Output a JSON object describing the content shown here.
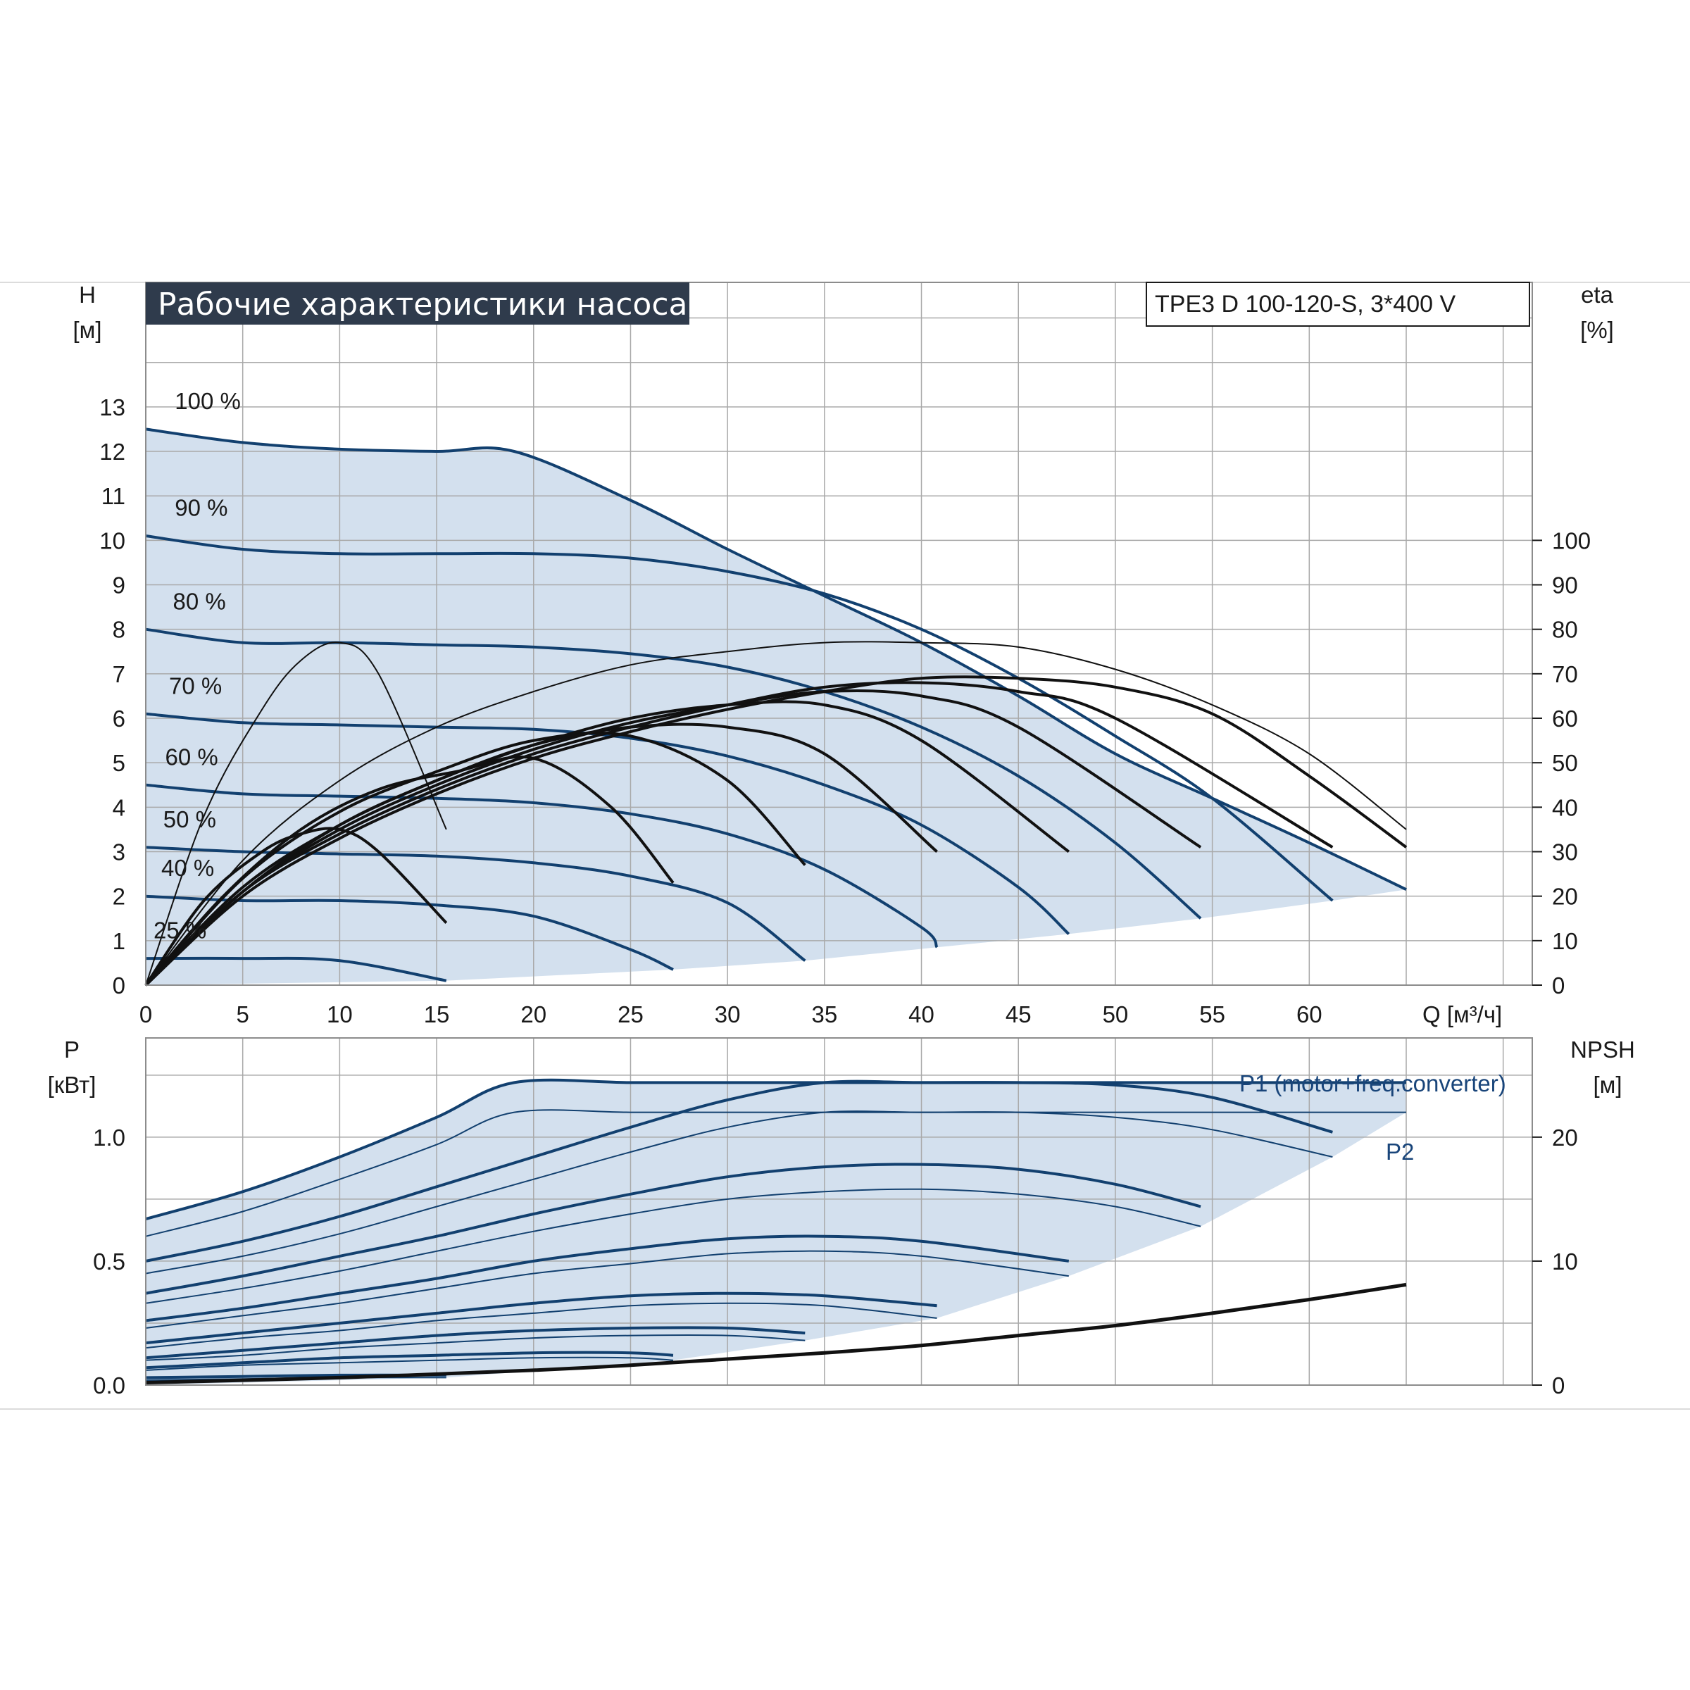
{
  "colors": {
    "curve_blue": "#12406f",
    "fill_blue": "#d3e0ee",
    "grid": "#a9a9a9",
    "eff_black": "#111111",
    "title_bg": "#2f3b4c"
  },
  "chart_data": [
    {
      "type": "line",
      "title": "Рабочие характеристики насоса",
      "model": "TPE3 D 100-120-S, 3*400 V",
      "ylabel": "H",
      "yunit": "[м]",
      "y2label": "eta",
      "y2unit": "[%]",
      "xlabel": "Q [м³/ч]",
      "xlim": [
        0,
        71.5
      ],
      "ylim": [
        0,
        15.8
      ],
      "y2lim": [
        0,
        100
      ],
      "x_ticks": [
        "0",
        "5",
        "10",
        "15",
        "20",
        "25",
        "30",
        "35",
        "40",
        "45",
        "50",
        "55",
        "60"
      ],
      "y_ticks": [
        "0",
        "1",
        "2",
        "3",
        "4",
        "5",
        "6",
        "7",
        "8",
        "9",
        "10",
        "11",
        "12",
        "13"
      ],
      "y2_ticks": [
        "0",
        "10",
        "20",
        "30",
        "40",
        "50",
        "60",
        "70",
        "80",
        "90",
        "100"
      ],
      "grid": true,
      "speed_labels": [
        "100 %",
        "90 %",
        "80 %",
        "70 %",
        "60 %",
        "50 %",
        "40 %",
        "25 %"
      ],
      "head_curves": [
        {
          "name": "100 %",
          "x": [
            0,
            5,
            10,
            15,
            19,
            25,
            30,
            35,
            40,
            45,
            50,
            55,
            60,
            65
          ],
          "y": [
            12.5,
            12.2,
            12.05,
            12.0,
            12.0,
            10.9,
            9.8,
            8.75,
            7.7,
            6.5,
            5.2,
            4.2,
            3.2,
            2.15
          ]
        },
        {
          "name": "90 %",
          "x": [
            0,
            5,
            10,
            15,
            20,
            25,
            30,
            35,
            40,
            45,
            50,
            55,
            61.2
          ],
          "y": [
            10.1,
            9.8,
            9.7,
            9.7,
            9.7,
            9.6,
            9.3,
            8.8,
            8.0,
            6.9,
            5.6,
            4.2,
            1.9
          ]
        },
        {
          "name": "80 %",
          "x": [
            0,
            5,
            10,
            15,
            20,
            25,
            30,
            35,
            40,
            45,
            50,
            54.4
          ],
          "y": [
            8.0,
            7.7,
            7.7,
            7.65,
            7.6,
            7.45,
            7.15,
            6.6,
            5.8,
            4.7,
            3.2,
            1.5
          ]
        },
        {
          "name": "70 %",
          "x": [
            0,
            5,
            10,
            15,
            20,
            25,
            30,
            35,
            40,
            45,
            47.6
          ],
          "y": [
            6.1,
            5.9,
            5.85,
            5.8,
            5.75,
            5.55,
            5.15,
            4.5,
            3.6,
            2.2,
            1.15
          ]
        },
        {
          "name": "60 %",
          "x": [
            0,
            5,
            10,
            15,
            20,
            25,
            30,
            35,
            40,
            40.8
          ],
          "y": [
            4.5,
            4.3,
            4.25,
            4.2,
            4.1,
            3.85,
            3.4,
            2.6,
            1.3,
            0.85
          ]
        },
        {
          "name": "50 %",
          "x": [
            0,
            5,
            10,
            15,
            20,
            25,
            30,
            34
          ],
          "y": [
            3.1,
            3.0,
            2.95,
            2.9,
            2.75,
            2.45,
            1.85,
            0.55
          ]
        },
        {
          "name": "40 %",
          "x": [
            0,
            5,
            10,
            15,
            20,
            25,
            27.2
          ],
          "y": [
            2.0,
            1.9,
            1.9,
            1.8,
            1.55,
            0.8,
            0.35
          ]
        },
        {
          "name": "25 %",
          "x": [
            0,
            5,
            10,
            15.5
          ],
          "y": [
            0.6,
            0.6,
            0.55,
            0.1
          ]
        }
      ],
      "efficiency_curves": [
        {
          "name": "eta-25",
          "x": [
            0,
            3,
            6,
            8,
            10,
            12,
            15.5
          ],
          "y": [
            0,
            19,
            30,
            34,
            35,
            30,
            14
          ]
        },
        {
          "name": "eta-40",
          "x": [
            0,
            4,
            8,
            12,
            16,
            20,
            24,
            27.2
          ],
          "y": [
            0,
            20,
            35,
            44,
            48,
            51,
            40,
            23
          ]
        },
        {
          "name": "eta-50",
          "x": [
            0,
            5,
            10,
            15,
            20,
            25,
            30,
            34
          ],
          "y": [
            0,
            24,
            39,
            48,
            55,
            56,
            46,
            27
          ]
        },
        {
          "name": "eta-60",
          "x": [
            0,
            5,
            10,
            15,
            20,
            25,
            30,
            35,
            40.8
          ],
          "y": [
            0,
            22,
            36,
            46,
            54,
            58,
            58,
            52,
            30
          ]
        },
        {
          "name": "eta-70",
          "x": [
            0,
            5,
            10,
            15,
            20,
            25,
            30,
            35,
            40,
            47.6
          ],
          "y": [
            0,
            21,
            36,
            46,
            54,
            60,
            63,
            63,
            55,
            30
          ]
        },
        {
          "name": "eta-80",
          "x": [
            0,
            5,
            10,
            15,
            20,
            25,
            30,
            35,
            40,
            45,
            54.4
          ],
          "y": [
            0,
            21,
            35,
            45,
            53,
            59,
            63,
            66,
            65,
            58,
            31
          ]
        },
        {
          "name": "eta-90",
          "x": [
            0,
            5,
            10,
            15,
            20,
            25,
            30,
            35,
            40,
            45,
            50,
            61.2
          ],
          "y": [
            0,
            21,
            34,
            44,
            52,
            58,
            63,
            67,
            68,
            66,
            60,
            31
          ]
        },
        {
          "name": "eta-100",
          "x": [
            0,
            5,
            10,
            15,
            20,
            25,
            30,
            35,
            40,
            45,
            50,
            55,
            60,
            65
          ],
          "y": [
            0,
            20,
            33,
            43,
            51,
            57,
            62,
            66,
            69,
            69,
            67,
            61,
            47,
            31
          ]
        },
        {
          "name": "eta-80-thin",
          "x": [
            0,
            3,
            6,
            8,
            10,
            12,
            15.5
          ],
          "y": [
            0,
            38,
            62,
            73,
            77,
            70,
            35
          ]
        },
        {
          "name": "eta-100-thin",
          "x": [
            0,
            5,
            10,
            15,
            20,
            25,
            30,
            35,
            40,
            45,
            50,
            55,
            60,
            65
          ],
          "y": [
            0,
            28,
            46,
            58,
            66,
            72,
            75,
            77,
            77,
            76,
            71,
            63,
            52,
            35
          ]
        }
      ]
    },
    {
      "type": "line",
      "ylabel": "P",
      "yunit": "[кВт]",
      "y2label": "NPSH",
      "y2unit": "[м]",
      "ylim": [
        0,
        1.4
      ],
      "y2lim": [
        0,
        28
      ],
      "y_ticks": [
        "0.0",
        "0.5",
        "1.0"
      ],
      "y2_ticks": [
        "0",
        "10",
        "20"
      ],
      "series_labels": {
        "p1": "P1 (motor+freq.converter)",
        "p2": "P2"
      },
      "power_curves": [
        {
          "name": "P1 100 %",
          "x": [
            0,
            5,
            10,
            15,
            19,
            25,
            30,
            35,
            40,
            45,
            50,
            55,
            60,
            65
          ],
          "y": [
            0.67,
            0.78,
            0.92,
            1.08,
            1.22,
            1.22,
            1.22,
            1.22,
            1.22,
            1.22,
            1.22,
            1.22,
            1.22,
            1.22
          ]
        },
        {
          "name": "P2 100 %",
          "x": [
            0,
            5,
            10,
            15,
            19,
            25,
            30,
            35,
            40,
            45,
            50,
            55,
            60,
            65
          ],
          "y": [
            0.6,
            0.7,
            0.83,
            0.97,
            1.1,
            1.1,
            1.1,
            1.1,
            1.1,
            1.1,
            1.1,
            1.1,
            1.1,
            1.1
          ]
        },
        {
          "name": "P1 90 %",
          "x": [
            0,
            5,
            10,
            15,
            20,
            25,
            30,
            35,
            40,
            45,
            50,
            55,
            61.2
          ],
          "y": [
            0.5,
            0.58,
            0.68,
            0.8,
            0.92,
            1.04,
            1.15,
            1.22,
            1.22,
            1.22,
            1.21,
            1.16,
            1.02
          ]
        },
        {
          "name": "P2 90 %",
          "x": [
            0,
            5,
            10,
            15,
            20,
            25,
            30,
            35,
            40,
            45,
            50,
            55,
            61.2
          ],
          "y": [
            0.45,
            0.52,
            0.61,
            0.72,
            0.83,
            0.94,
            1.04,
            1.1,
            1.1,
            1.1,
            1.08,
            1.03,
            0.92
          ]
        },
        {
          "name": "P1 80 %",
          "x": [
            0,
            5,
            10,
            15,
            20,
            25,
            30,
            35,
            40,
            45,
            50,
            54.4
          ],
          "y": [
            0.37,
            0.44,
            0.52,
            0.6,
            0.69,
            0.77,
            0.84,
            0.88,
            0.89,
            0.87,
            0.81,
            0.72
          ]
        },
        {
          "name": "P2 80 %",
          "x": [
            0,
            5,
            10,
            15,
            20,
            25,
            30,
            35,
            40,
            45,
            50,
            54.4
          ],
          "y": [
            0.33,
            0.39,
            0.46,
            0.54,
            0.62,
            0.69,
            0.75,
            0.78,
            0.79,
            0.77,
            0.72,
            0.64
          ]
        },
        {
          "name": "P1 70 %",
          "x": [
            0,
            5,
            10,
            15,
            20,
            25,
            30,
            35,
            40,
            47.6
          ],
          "y": [
            0.26,
            0.31,
            0.37,
            0.43,
            0.5,
            0.55,
            0.59,
            0.6,
            0.58,
            0.5
          ]
        },
        {
          "name": "P2 70 %",
          "x": [
            0,
            5,
            10,
            15,
            20,
            25,
            30,
            35,
            40,
            47.6
          ],
          "y": [
            0.23,
            0.28,
            0.33,
            0.39,
            0.45,
            0.49,
            0.53,
            0.54,
            0.52,
            0.44
          ]
        },
        {
          "name": "P1 60 %",
          "x": [
            0,
            5,
            10,
            15,
            20,
            25,
            30,
            35,
            40.8
          ],
          "y": [
            0.17,
            0.21,
            0.25,
            0.29,
            0.33,
            0.36,
            0.37,
            0.36,
            0.32
          ]
        },
        {
          "name": "P2 60 %",
          "x": [
            0,
            5,
            10,
            15,
            20,
            25,
            30,
            35,
            40.8
          ],
          "y": [
            0.15,
            0.19,
            0.22,
            0.26,
            0.29,
            0.32,
            0.33,
            0.32,
            0.27
          ]
        },
        {
          "name": "P1 50 %",
          "x": [
            0,
            5,
            10,
            15,
            20,
            25,
            30,
            34
          ],
          "y": [
            0.11,
            0.14,
            0.17,
            0.2,
            0.22,
            0.23,
            0.23,
            0.21
          ]
        },
        {
          "name": "P2 50 %",
          "x": [
            0,
            5,
            10,
            15,
            20,
            25,
            30,
            34
          ],
          "y": [
            0.1,
            0.12,
            0.15,
            0.17,
            0.19,
            0.2,
            0.2,
            0.18
          ]
        },
        {
          "name": "P1 40 %",
          "x": [
            0,
            5,
            10,
            15,
            20,
            25,
            27.2
          ],
          "y": [
            0.07,
            0.09,
            0.11,
            0.12,
            0.13,
            0.13,
            0.12
          ]
        },
        {
          "name": "P2 40 %",
          "x": [
            0,
            5,
            10,
            15,
            20,
            25,
            27.2
          ],
          "y": [
            0.06,
            0.08,
            0.09,
            0.1,
            0.11,
            0.11,
            0.1
          ]
        },
        {
          "name": "P1 25 %",
          "x": [
            0,
            5,
            10,
            15.5
          ],
          "y": [
            0.03,
            0.035,
            0.04,
            0.04
          ]
        },
        {
          "name": "P2 25 %",
          "x": [
            0,
            5,
            10,
            15.5
          ],
          "y": [
            0.02,
            0.025,
            0.03,
            0.03
          ]
        }
      ],
      "npsh_curve": {
        "x": [
          0,
          10,
          20,
          25,
          30,
          35,
          40,
          45,
          50,
          55,
          60,
          65
        ],
        "y": [
          0.2,
          0.6,
          1.2,
          1.6,
          2.1,
          2.6,
          3.2,
          4.0,
          4.8,
          5.8,
          6.9,
          8.1
        ]
      }
    }
  ]
}
